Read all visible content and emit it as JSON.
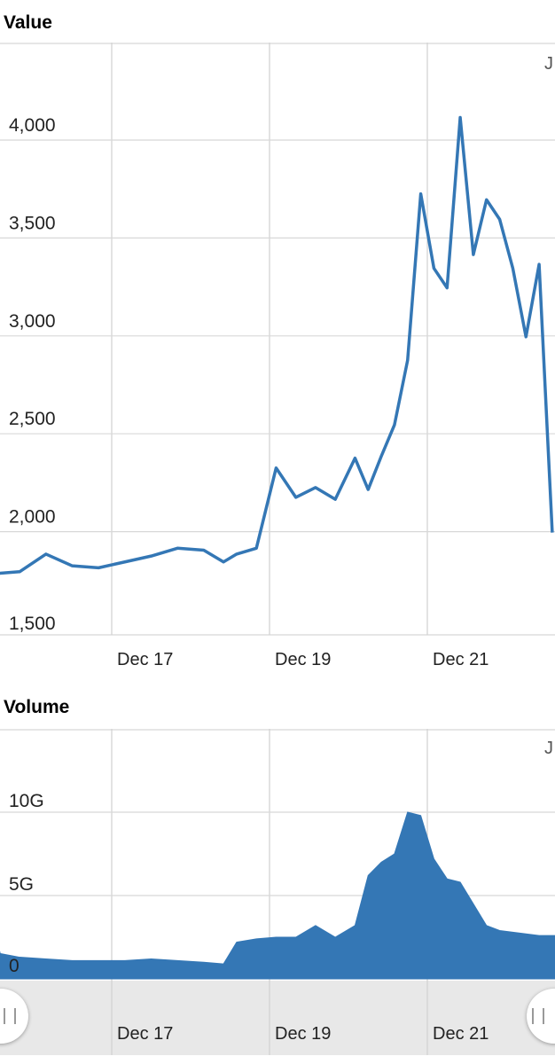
{
  "value_panel": {
    "title": "Value",
    "clip_label": "J"
  },
  "volume_panel": {
    "title": "Volume",
    "clip_label": "J"
  },
  "navigator": {
    "x_tick_labels": [
      "Dec 17",
      "Dec 19",
      "Dec 21"
    ]
  },
  "footer_text": "",
  "colors": {
    "series": "#3477b5",
    "grid": "#d8d8d8",
    "navigator_bg": "#e8e8e8"
  },
  "chart_data": [
    {
      "type": "line",
      "title": "Value",
      "xlabel": "",
      "ylabel": "",
      "x_ticks": [
        "Dec 17",
        "Dec 19",
        "Dec 21"
      ],
      "y_ticks": [
        "1,500",
        "2,000",
        "2,500",
        "3,000",
        "3,500",
        "4,000"
      ],
      "ylim": [
        1500,
        4000
      ],
      "grid": true,
      "series": [
        {
          "x": [
            "Dec 15 12:00",
            "Dec 15 20:00",
            "Dec 16 04:00",
            "Dec 16 12:00",
            "Dec 16 20:00",
            "Dec 17 04:00",
            "Dec 17 12:00",
            "Dec 17 20:00",
            "Dec 18 04:00",
            "Dec 18 10:00",
            "Dec 18 14:00",
            "Dec 18 20:00",
            "Dec 19 02:00",
            "Dec 19 08:00",
            "Dec 19 14:00",
            "Dec 19 20:00",
            "Dec 20 02:00",
            "Dec 20 06:00",
            "Dec 20 10:00",
            "Dec 20 14:00",
            "Dec 20 18:00",
            "Dec 20 22:00",
            "Dec 21 02:00",
            "Dec 21 06:00",
            "Dec 21 10:00",
            "Dec 21 14:00",
            "Dec 21 18:00",
            "Dec 21 22:00",
            "Dec 22 02:00",
            "Dec 22 06:00",
            "Dec 22 10:00",
            "Dec 22 14:00"
          ],
          "values": [
            1740,
            1750,
            1840,
            1780,
            1770,
            1800,
            1830,
            1870,
            1860,
            1800,
            1840,
            1870,
            2280,
            2130,
            2180,
            2120,
            2330,
            2170,
            2340,
            2500,
            2830,
            3680,
            3300,
            3200,
            4070,
            3370,
            3650,
            3550,
            3300,
            2950,
            3320,
            1950
          ]
        }
      ]
    },
    {
      "type": "area",
      "title": "Volume",
      "xlabel": "",
      "ylabel": "",
      "x_ticks": [
        "Dec 17",
        "Dec 19",
        "Dec 21"
      ],
      "y_ticks": [
        "0",
        "5G",
        "10G"
      ],
      "ylim": [
        0,
        10
      ],
      "grid": true,
      "series": [
        {
          "x": [
            "Dec 15 12:00",
            "Dec 15 20:00",
            "Dec 16 04:00",
            "Dec 16 12:00",
            "Dec 16 20:00",
            "Dec 17 04:00",
            "Dec 17 12:00",
            "Dec 17 20:00",
            "Dec 18 04:00",
            "Dec 18 10:00",
            "Dec 18 14:00",
            "Dec 18 20:00",
            "Dec 19 02:00",
            "Dec 19 08:00",
            "Dec 19 14:00",
            "Dec 19 20:00",
            "Dec 20 02:00",
            "Dec 20 06:00",
            "Dec 20 10:00",
            "Dec 20 14:00",
            "Dec 20 18:00",
            "Dec 20 22:00",
            "Dec 21 02:00",
            "Dec 21 06:00",
            "Dec 21 10:00",
            "Dec 21 14:00",
            "Dec 21 18:00",
            "Dec 21 22:00",
            "Dec 22 02:00",
            "Dec 22 06:00",
            "Dec 22 10:00",
            "Dec 22 14:00"
          ],
          "values": [
            1.6,
            1.3,
            1.2,
            1.1,
            1.1,
            1.1,
            1.2,
            1.1,
            1.0,
            0.9,
            2.2,
            2.4,
            2.5,
            2.5,
            3.2,
            2.5,
            3.2,
            6.2,
            7.0,
            7.5,
            10.0,
            9.8,
            7.2,
            6.0,
            5.8,
            4.5,
            3.2,
            2.9,
            2.8,
            2.7,
            2.6,
            2.6
          ]
        }
      ]
    }
  ]
}
